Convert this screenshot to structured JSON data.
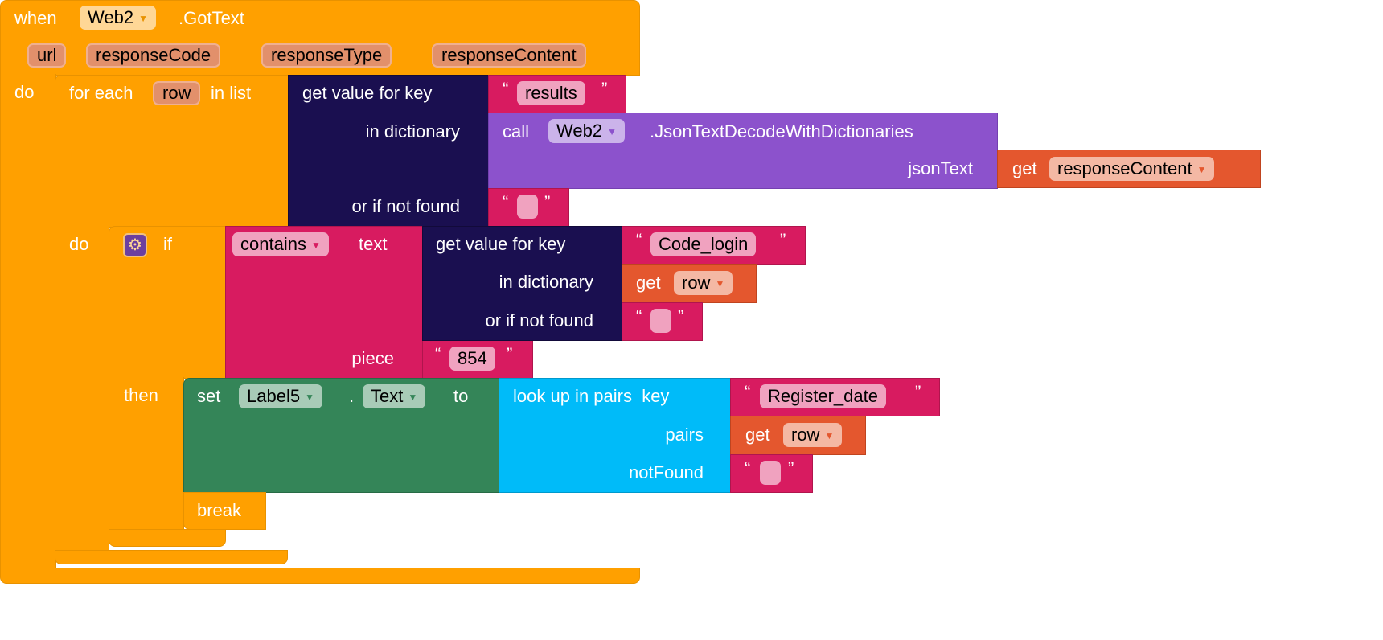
{
  "event": {
    "when": "when",
    "component": "Web2",
    "event_name": ".GotText",
    "params": [
      "url",
      "responseCode",
      "responseType",
      "responseContent"
    ],
    "do": "do"
  },
  "foreach": {
    "label": "for each",
    "var": "row",
    "in_list": "in list",
    "do": "do"
  },
  "getvalue1": {
    "label": "get value for key",
    "in_dict": "in dictionary",
    "not_found": "or if not found",
    "key": "results",
    "not_found_value": ""
  },
  "call": {
    "label": "call",
    "component": "Web2",
    "method": ".JsonTextDecodeWithDictionaries",
    "arg": "jsonText",
    "get": "get",
    "var": "responseContent"
  },
  "if": {
    "label": "if",
    "then": "then"
  },
  "contains": {
    "mode": "contains",
    "text": "text",
    "piece": "piece",
    "piece_value": "854"
  },
  "getvalue2": {
    "label": "get value for key",
    "in_dict": "in dictionary",
    "not_found": "or if not found",
    "key": "Code_login",
    "get": "get",
    "var": "row",
    "not_found_value": ""
  },
  "set": {
    "label": "set",
    "component": "Label5",
    "dot": ".",
    "prop": "Text",
    "to": "to"
  },
  "lookup": {
    "label": "look up in pairs  key",
    "pairs": "pairs",
    "notfound": "notFound",
    "key": "Register_date",
    "get": "get",
    "var": "row",
    "notfound_value": ""
  },
  "break": {
    "label": "break"
  },
  "quotes": {
    "open": "“",
    "close": "”"
  },
  "colors": {
    "control": "#ffa000",
    "dictionary": "#1a0f50",
    "text": "#d81b60",
    "component": "#8c52cc",
    "variable": "#e4572e",
    "setter": "#348558",
    "lists": "#00bbf9"
  }
}
